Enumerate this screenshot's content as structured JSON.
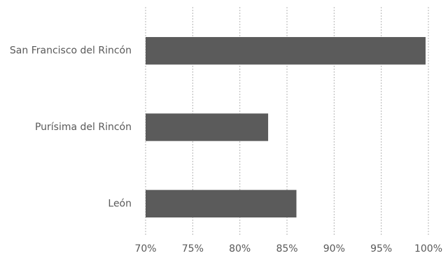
{
  "chart_data": {
    "type": "bar",
    "orientation": "horizontal",
    "categories": [
      "San Francisco del Rincón",
      "Purísima del Rincón",
      "León"
    ],
    "values": [
      99.7,
      83,
      86
    ],
    "color": "#5b5b5b",
    "xlim": [
      70,
      100
    ],
    "xticks": [
      {
        "value": 70,
        "label": "70%"
      },
      {
        "value": 75,
        "label": "75%"
      },
      {
        "value": 80,
        "label": "80%"
      },
      {
        "value": 85,
        "label": "85%"
      },
      {
        "value": 90,
        "label": "90%"
      },
      {
        "value": 95,
        "label": "95%"
      },
      {
        "value": 100,
        "label": "100%"
      }
    ],
    "grid": true
  }
}
